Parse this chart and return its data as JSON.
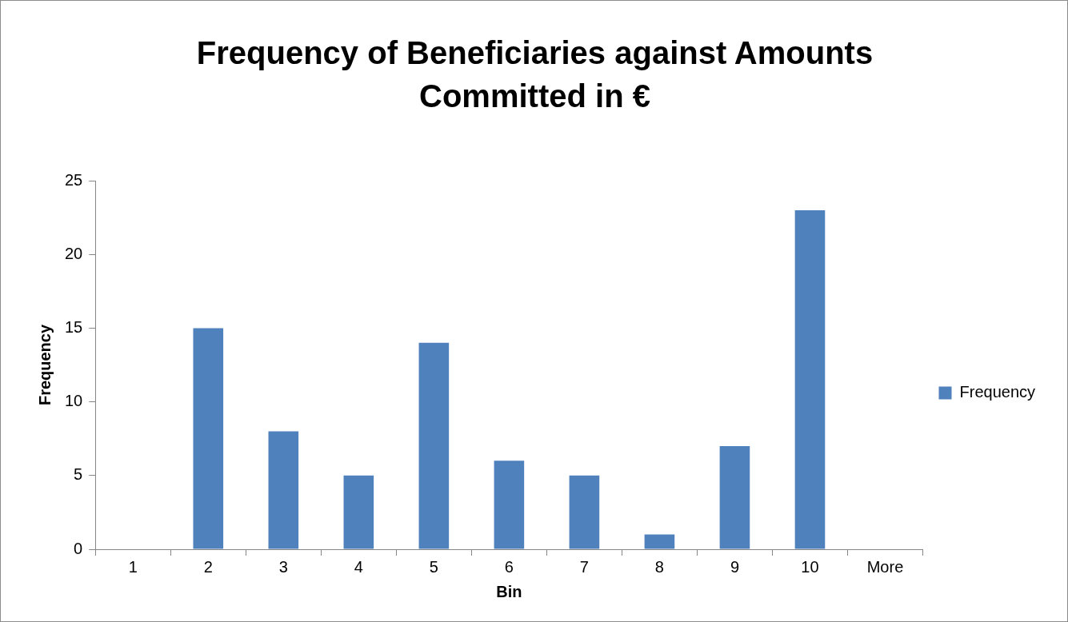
{
  "chart_data": {
    "type": "bar",
    "title": "Frequency of Beneficiaries against Amounts Committed in €",
    "xlabel": "Bin",
    "ylabel": "Frequency",
    "categories": [
      "1",
      "2",
      "3",
      "4",
      "5",
      "6",
      "7",
      "8",
      "9",
      "10",
      "More"
    ],
    "series": [
      {
        "name": "Frequency",
        "color": "#4f81bd",
        "values": [
          0,
          15,
          8,
          5,
          14,
          6,
          5,
          1,
          7,
          23,
          0
        ]
      }
    ],
    "ylim": [
      0,
      25
    ],
    "yticks": [
      0,
      5,
      10,
      15,
      20,
      25
    ],
    "grid": false,
    "legend": "right"
  }
}
